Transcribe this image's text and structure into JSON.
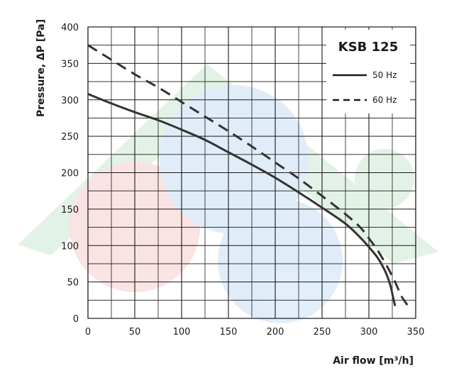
{
  "chart_data": {
    "type": "line",
    "title": "KSB 125",
    "xlabel": "Air flow [m³/h]",
    "ylabel": "Pressure, ΔP [Pa]",
    "xlim": [
      0,
      350
    ],
    "ylim": [
      0,
      400
    ],
    "x_ticks": [
      "0",
      "50",
      "100",
      "150",
      "200",
      "250",
      "300",
      "350"
    ],
    "y_ticks": [
      "0",
      "50",
      "100",
      "150",
      "200",
      "250",
      "300",
      "350",
      "400"
    ],
    "grid": true,
    "legend_position": "top-right",
    "series": [
      {
        "name": "50 Hz",
        "style": "solid",
        "color": "#333333",
        "points": [
          [
            0,
            308
          ],
          [
            25,
            295
          ],
          [
            50,
            283
          ],
          [
            75,
            272
          ],
          [
            100,
            259
          ],
          [
            125,
            245
          ],
          [
            150,
            228
          ],
          [
            175,
            211
          ],
          [
            200,
            193
          ],
          [
            225,
            173
          ],
          [
            250,
            152
          ],
          [
            275,
            130
          ],
          [
            290,
            112
          ],
          [
            300,
            98
          ],
          [
            310,
            82
          ],
          [
            318,
            63
          ],
          [
            323,
            45
          ],
          [
            326,
            28
          ],
          [
            328,
            17
          ]
        ]
      },
      {
        "name": "60 Hz",
        "style": "dashed",
        "color": "#333333",
        "points": [
          [
            0,
            375
          ],
          [
            25,
            355
          ],
          [
            50,
            335
          ],
          [
            75,
            317
          ],
          [
            100,
            297
          ],
          [
            125,
            277
          ],
          [
            150,
            257
          ],
          [
            175,
            236
          ],
          [
            200,
            214
          ],
          [
            225,
            192
          ],
          [
            250,
            168
          ],
          [
            275,
            143
          ],
          [
            290,
            126
          ],
          [
            300,
            110
          ],
          [
            310,
            92
          ],
          [
            320,
            70
          ],
          [
            328,
            50
          ],
          [
            335,
            30
          ],
          [
            342,
            17
          ]
        ]
      }
    ]
  }
}
